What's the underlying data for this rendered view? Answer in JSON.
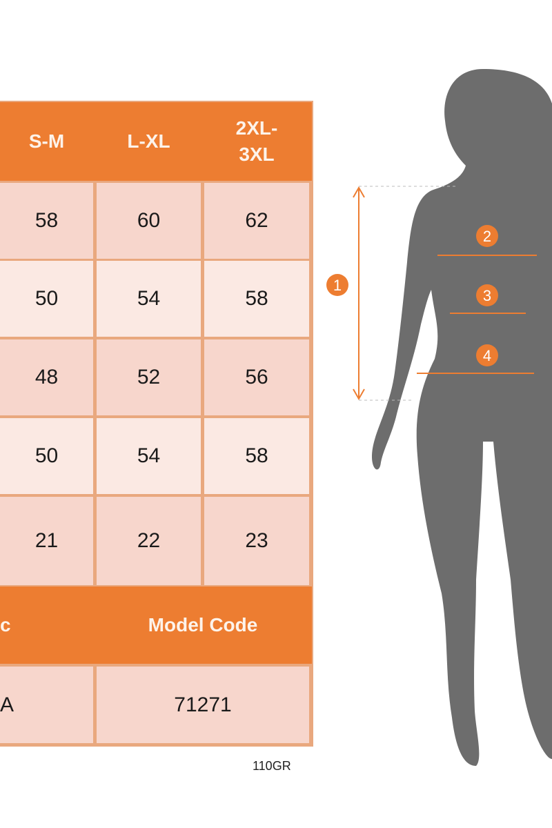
{
  "table": {
    "header": [
      "S-M",
      "L-XL",
      "2XL-\n3XL"
    ],
    "rows": [
      [
        "58",
        "60",
        "62"
      ],
      [
        "50",
        "54",
        "58"
      ],
      [
        "48",
        "52",
        "56"
      ],
      [
        "50",
        "54",
        "58"
      ],
      [
        "21",
        "22",
        "23"
      ]
    ],
    "footer_header": {
      "left": "c",
      "right": "Model Code"
    },
    "footer_row": {
      "left": "A",
      "right": "71271"
    }
  },
  "figure": {
    "markers": [
      "1",
      "2",
      "3",
      "4"
    ]
  },
  "code": "110GR",
  "colors": {
    "accent": "#ed7d31",
    "row_dark": "#f7d6cc",
    "row_light": "#fbe9e3",
    "silhouette": "#6d6d6d"
  }
}
